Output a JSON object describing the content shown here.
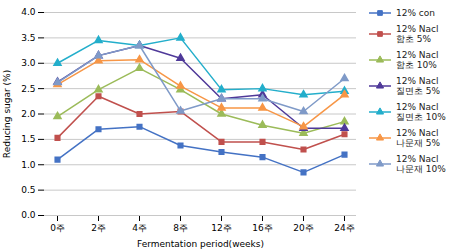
{
  "chart_data": {
    "type": "line",
    "categories": [
      "0주",
      "2주",
      "4주",
      "8주",
      "12주",
      "16주",
      "20주",
      "24주"
    ],
    "series": [
      {
        "name": "12% con",
        "color": "#4472C4",
        "marker": "square",
        "values": [
          1.1,
          1.7,
          1.75,
          1.38,
          1.25,
          1.15,
          0.85,
          1.2
        ]
      },
      {
        "name": "12% Nacl\n함초 5%",
        "color": "#C0504D",
        "marker": "square",
        "values": [
          1.53,
          2.35,
          2.0,
          2.05,
          1.45,
          1.45,
          1.3,
          1.6
        ]
      },
      {
        "name": "12% Nacl\n함초 10%",
        "color": "#9BBB59",
        "marker": "triangle",
        "values": [
          1.95,
          2.48,
          2.9,
          2.48,
          2.0,
          1.78,
          1.62,
          1.85
        ]
      },
      {
        "name": "12% Nacl\n질면초 5%",
        "color": "#4F3999",
        "marker": "triangle",
        "values": [
          2.63,
          3.15,
          3.35,
          3.1,
          2.3,
          2.38,
          1.72,
          1.72
        ]
      },
      {
        "name": "12% Nacl\n질면초 10%",
        "color": "#23AECB",
        "marker": "triangle",
        "values": [
          3.0,
          3.45,
          3.35,
          3.5,
          2.48,
          2.5,
          2.38,
          2.45
        ]
      },
      {
        "name": "12% Nacl\n나문재 5%",
        "color": "#F79646",
        "marker": "triangle",
        "values": [
          2.58,
          3.05,
          3.07,
          2.55,
          2.12,
          2.12,
          1.75,
          2.38
        ]
      },
      {
        "name": "12% Nacl\n나문재 10%",
        "color": "#7F9AC8",
        "marker": "triangle",
        "values": [
          2.62,
          3.15,
          3.35,
          2.06,
          2.3,
          2.3,
          2.05,
          2.7
        ]
      }
    ],
    "xlabel": "Fermentation period(weeks)",
    "ylabel": "Reducing sugar (%)",
    "ylim": [
      0.0,
      4.0
    ],
    "yticks": [
      {
        "value": 0.0,
        "label": "0.0"
      },
      0.5,
      {
        "value": 1.0,
        "label": "1.0"
      },
      1.5,
      {
        "value": 2.0,
        "label": "2.0"
      },
      2.5,
      {
        "value": 3.0,
        "label": "3.0"
      },
      3.5,
      {
        "value": 4.0,
        "label": "4.0"
      }
    ],
    "grid": "y",
    "legend": "right"
  }
}
